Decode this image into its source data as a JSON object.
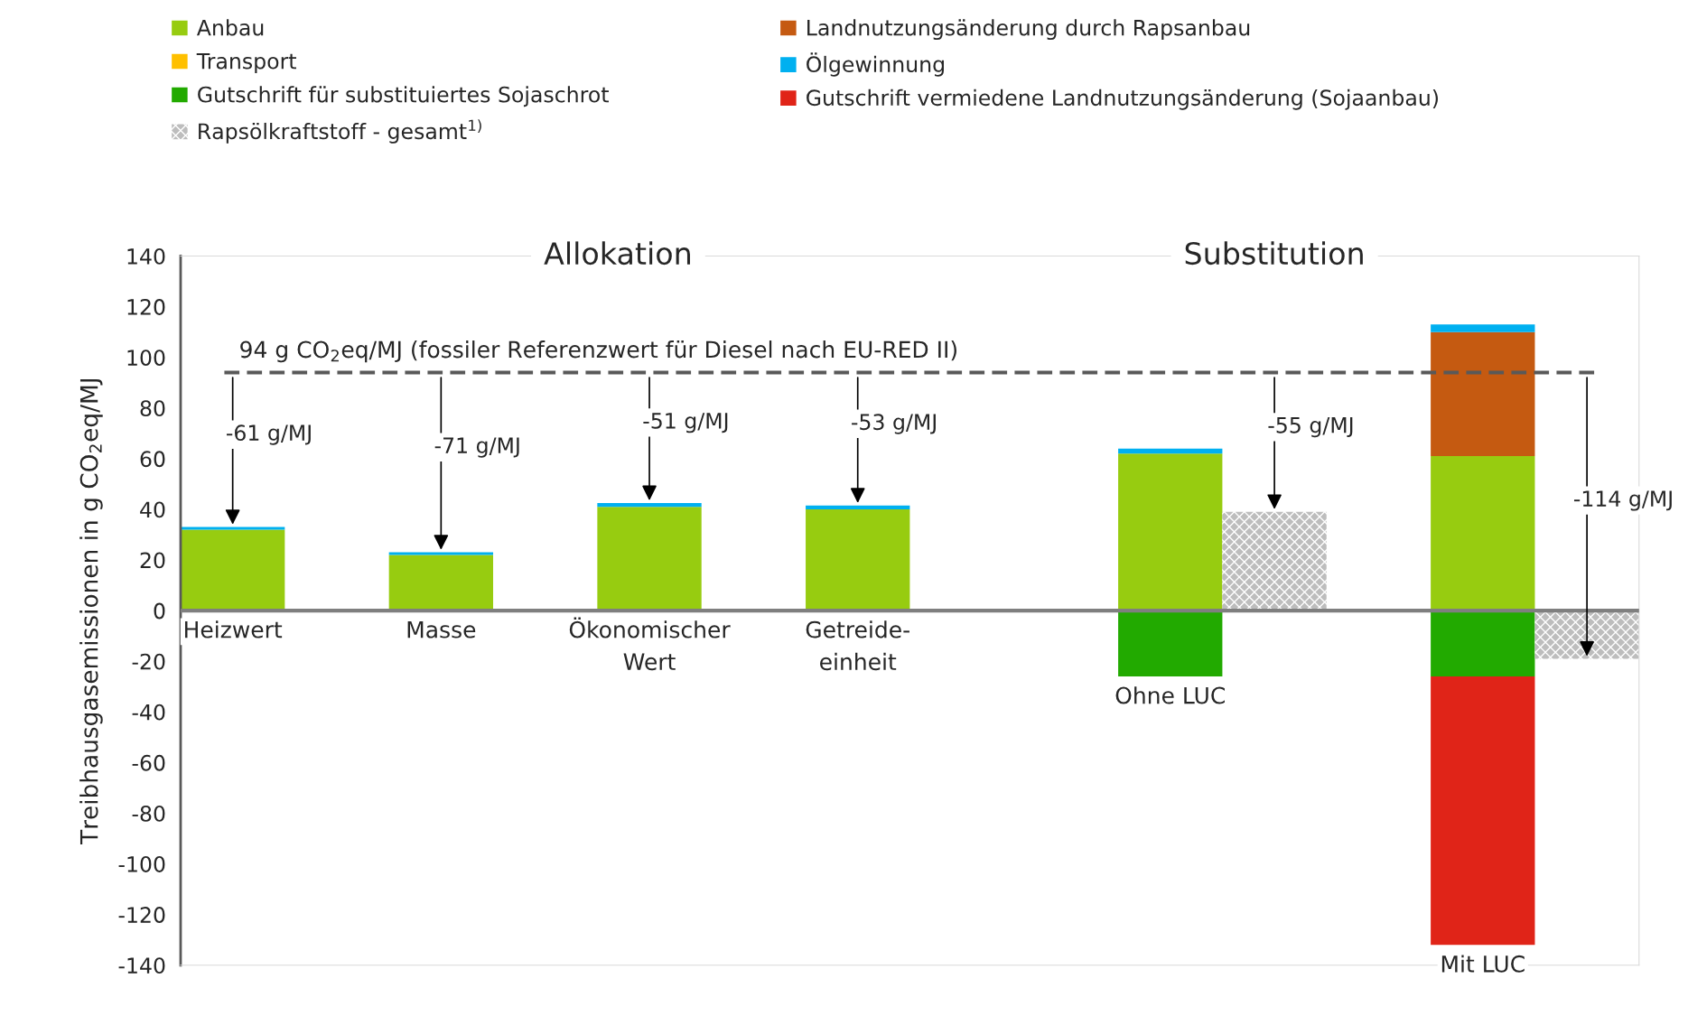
{
  "chart_data": {
    "type": "bar",
    "stacked": true,
    "legend": "top",
    "ylabel": "Treibhausgasemissionen in g CO$_{2}$eq/MJ",
    "categories": [
      "Heizwert",
      null,
      "Masse",
      null,
      "Ökonomischer\nWert",
      null,
      "Getreide-\neinheit",
      null,
      null,
      "Ohne LUC",
      null,
      null,
      "Mit LUC",
      null
    ],
    "series": [
      {
        "name": "Anbau",
        "color": "#97cc10",
        "values": [
          32,
          null,
          22,
          null,
          41,
          null,
          40,
          null,
          null,
          62,
          null,
          null,
          61,
          null
        ]
      },
      {
        "name": "Transport",
        "color": "#ffc000",
        "values": [
          null,
          null,
          null,
          null,
          null,
          null,
          null,
          null,
          null,
          null,
          null,
          null,
          null,
          null
        ]
      },
      {
        "name": "Gutschrift für substituiertes Sojaschrot",
        "color": "#22aa00",
        "values": [
          null,
          null,
          null,
          null,
          null,
          null,
          null,
          null,
          null,
          -26,
          null,
          null,
          -26,
          null
        ]
      },
      {
        "name": "Rapsölkraftstoff - gesamt$^{1)}$",
        "color": "#bdbdbd",
        "values": [
          null,
          null,
          null,
          null,
          null,
          null,
          null,
          null,
          null,
          null,
          39,
          null,
          null,
          -19
        ]
      },
      {
        "name": "Landnutzungsänderung durch Rapsanbau",
        "color": "#c55a11",
        "values": [
          null,
          null,
          null,
          null,
          null,
          null,
          null,
          null,
          null,
          null,
          null,
          null,
          49,
          null
        ]
      },
      {
        "name": "Ölgewinnung",
        "color": "#00b0f0",
        "values": [
          1,
          null,
          1,
          null,
          1.5,
          null,
          1.5,
          null,
          null,
          2,
          null,
          null,
          3,
          null
        ]
      },
      {
        "name": "Gutschrift vermiedene Landnutzungsänderung (Sojaanbau)",
        "color": "#e02418",
        "values": [
          null,
          null,
          null,
          null,
          null,
          null,
          null,
          null,
          null,
          null,
          null,
          null,
          -106,
          null
        ]
      }
    ],
    "ylim": [
      -140,
      140
    ],
    "yticks": [
      -140,
      -120,
      -100,
      -80,
      -60,
      -40,
      -20,
      0,
      20,
      40,
      60,
      80,
      100,
      120,
      140
    ],
    "ref_lines": [
      {
        "axis": "y",
        "value": 94,
        "label": "94 g CO$_{2}$eq/MJ (fossiler Referenzwert für Diesel nach EU-RED II)",
        "color": "#595959",
        "line_style": "dashed"
      }
    ],
    "annotations": [
      "Allokation",
      "Substitution",
      "-61 g/MJ",
      "-71 g/MJ",
      "-51 g/MJ",
      "-53 g/MJ",
      "-55 g/MJ",
      "-114 g/MJ"
    ]
  }
}
